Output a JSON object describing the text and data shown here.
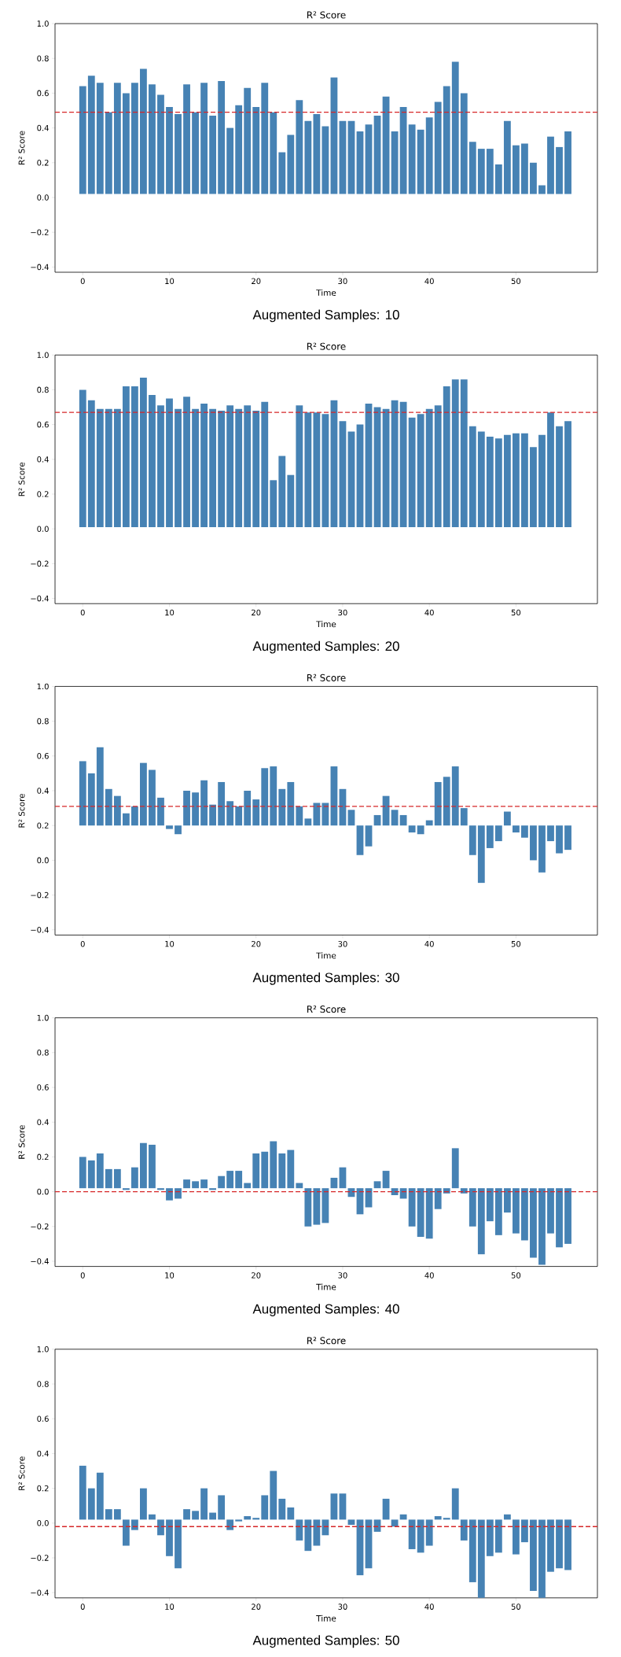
{
  "chart_data": [
    {
      "type": "bar",
      "title": "R² Score",
      "xlabel": "Time",
      "ylabel": "R² Score",
      "annotations": [
        "Augmented Samples:  10"
      ],
      "color": "#4682b4",
      "x": [
        0,
        1,
        2,
        3,
        4,
        5,
        6,
        7,
        8,
        9,
        10,
        11,
        12,
        13,
        14,
        15,
        16,
        17,
        18,
        19,
        20,
        21,
        22,
        23,
        24,
        25,
        26,
        27,
        28,
        29,
        30,
        31,
        32,
        33,
        34,
        35,
        36,
        37,
        38,
        39,
        40,
        41,
        42,
        43,
        44,
        45,
        46,
        47,
        48,
        49,
        50,
        51,
        52,
        53,
        54,
        55,
        56
      ],
      "base": [
        0.02,
        0.02,
        0.02,
        0.02,
        0.02,
        0.02,
        0.02,
        0.02,
        0.02,
        0.02,
        0.02,
        0.02,
        0.02,
        0.02,
        0.02,
        0.02,
        0.02,
        0.02,
        0.02,
        0.02,
        0.02,
        0.02,
        0.02,
        0.02,
        0.02,
        0.02,
        0.02,
        0.02,
        0.02,
        0.02,
        0.02,
        0.02,
        0.02,
        0.02,
        0.02,
        0.02,
        0.02,
        0.02,
        0.02,
        0.02,
        0.02,
        0.02,
        0.02,
        0.02,
        0.02,
        0.02,
        0.02,
        0.02,
        0.02,
        0.02,
        0.02,
        0.02,
        0.02,
        0.02,
        0.02,
        0.02,
        0.02
      ],
      "values": [
        0.62,
        0.68,
        0.64,
        0.47,
        0.64,
        0.58,
        0.64,
        0.72,
        0.63,
        0.57,
        0.5,
        0.46,
        0.63,
        0.47,
        0.64,
        0.45,
        0.65,
        0.38,
        0.51,
        0.61,
        0.5,
        0.64,
        0.47,
        0.24,
        0.34,
        0.54,
        0.42,
        0.46,
        0.39,
        0.67,
        0.42,
        0.42,
        0.36,
        0.4,
        0.45,
        0.56,
        0.36,
        0.5,
        0.4,
        0.37,
        0.44,
        0.53,
        0.62,
        0.76,
        0.58,
        0.3,
        0.26,
        0.26,
        0.17,
        0.42,
        0.28,
        0.29,
        0.18,
        0.05,
        0.33,
        0.27,
        0.36
      ],
      "xlim": [
        -3.2,
        59.4
      ],
      "ylim": [
        -0.43,
        1.0
      ],
      "xticks": [
        0,
        10,
        20,
        30,
        40,
        50
      ],
      "yticks": [
        {
          "value": -0.4,
          "label": "−0.4"
        },
        {
          "value": -0.2,
          "label": "−0.2"
        },
        {
          "value": 0.0,
          "label": "0.0"
        },
        {
          "value": 0.2,
          "label": "0.2"
        },
        {
          "value": 0.4,
          "label": "0.4"
        },
        {
          "value": 0.6,
          "label": "0.6"
        },
        {
          "value": 0.8,
          "label": "0.8"
        },
        {
          "value": 1.0,
          "label": "1.0"
        }
      ],
      "ref_lines": [
        {
          "axis": "y",
          "value": 0.49,
          "color": "#d62728",
          "line_style": "dashed"
        }
      ]
    },
    {
      "type": "bar",
      "title": "R² Score",
      "xlabel": "Time",
      "ylabel": "R² Score",
      "annotations": [
        "Augmented Samples:  20"
      ],
      "color": "#4682b4",
      "x": [
        0,
        1,
        2,
        3,
        4,
        5,
        6,
        7,
        8,
        9,
        10,
        11,
        12,
        13,
        14,
        15,
        16,
        17,
        18,
        19,
        20,
        21,
        22,
        23,
        24,
        25,
        26,
        27,
        28,
        29,
        30,
        31,
        32,
        33,
        34,
        35,
        36,
        37,
        38,
        39,
        40,
        41,
        42,
        43,
        44,
        45,
        46,
        47,
        48,
        49,
        50,
        51,
        52,
        53,
        54,
        55,
        56
      ],
      "base": [
        0.01,
        0.01,
        0.01,
        0.01,
        0.01,
        0.01,
        0.01,
        0.01,
        0.01,
        0.01,
        0.01,
        0.01,
        0.01,
        0.01,
        0.01,
        0.01,
        0.01,
        0.01,
        0.01,
        0.01,
        0.01,
        0.01,
        0.01,
        0.01,
        0.01,
        0.01,
        0.01,
        0.01,
        0.01,
        0.01,
        0.01,
        0.01,
        0.01,
        0.01,
        0.01,
        0.01,
        0.01,
        0.01,
        0.01,
        0.01,
        0.01,
        0.01,
        0.01,
        0.01,
        0.01,
        0.01,
        0.01,
        0.01,
        0.01,
        0.01,
        0.01,
        0.01,
        0.01,
        0.01,
        0.01,
        0.01,
        0.01
      ],
      "values": [
        0.79,
        0.73,
        0.68,
        0.68,
        0.68,
        0.81,
        0.81,
        0.86,
        0.76,
        0.7,
        0.74,
        0.68,
        0.75,
        0.68,
        0.71,
        0.68,
        0.67,
        0.7,
        0.68,
        0.7,
        0.67,
        0.72,
        0.27,
        0.41,
        0.3,
        0.7,
        0.66,
        0.66,
        0.65,
        0.73,
        0.61,
        0.55,
        0.59,
        0.71,
        0.69,
        0.68,
        0.73,
        0.72,
        0.63,
        0.65,
        0.68,
        0.7,
        0.81,
        0.85,
        0.85,
        0.58,
        0.55,
        0.52,
        0.51,
        0.53,
        0.54,
        0.54,
        0.46,
        0.53,
        0.66,
        0.58,
        0.61
      ],
      "xlim": [
        -3.2,
        59.4
      ],
      "ylim": [
        -0.43,
        1.0
      ],
      "xticks": [
        0,
        10,
        20,
        30,
        40,
        50
      ],
      "yticks": [
        {
          "value": -0.4,
          "label": "−0.4"
        },
        {
          "value": -0.2,
          "label": "−0.2"
        },
        {
          "value": 0.0,
          "label": "0.0"
        },
        {
          "value": 0.2,
          "label": "0.2"
        },
        {
          "value": 0.4,
          "label": "0.4"
        },
        {
          "value": 0.6,
          "label": "0.6"
        },
        {
          "value": 0.8,
          "label": "0.8"
        },
        {
          "value": 1.0,
          "label": "1.0"
        }
      ],
      "ref_lines": [
        {
          "axis": "y",
          "value": 0.67,
          "color": "#d62728",
          "line_style": "dashed"
        }
      ]
    },
    {
      "type": "bar",
      "title": "R² Score",
      "xlabel": "Time",
      "ylabel": "R² Score",
      "annotations": [
        "Augmented Samples:  30"
      ],
      "color": "#4682b4",
      "x": [
        0,
        1,
        2,
        3,
        4,
        5,
        6,
        7,
        8,
        9,
        10,
        11,
        12,
        13,
        14,
        15,
        16,
        17,
        18,
        19,
        20,
        21,
        22,
        23,
        24,
        25,
        26,
        27,
        28,
        29,
        30,
        31,
        32,
        33,
        34,
        35,
        36,
        37,
        38,
        39,
        40,
        41,
        42,
        43,
        44,
        45,
        46,
        47,
        48,
        49,
        50,
        51,
        52,
        53,
        54,
        55,
        56
      ],
      "base": [
        0.2,
        0.2,
        0.2,
        0.2,
        0.2,
        0.2,
        0.2,
        0.2,
        0.2,
        0.2,
        0.2,
        0.2,
        0.2,
        0.2,
        0.2,
        0.2,
        0.2,
        0.2,
        0.2,
        0.2,
        0.2,
        0.2,
        0.2,
        0.2,
        0.2,
        0.2,
        0.2,
        0.2,
        0.2,
        0.2,
        0.2,
        0.2,
        0.2,
        0.2,
        0.2,
        0.2,
        0.2,
        0.2,
        0.2,
        0.2,
        0.2,
        0.2,
        0.2,
        0.2,
        0.2,
        0.2,
        0.2,
        0.2,
        0.2,
        0.2,
        0.2,
        0.2,
        0.2,
        0.2,
        0.2,
        0.2,
        0.2
      ],
      "values": [
        0.37,
        0.3,
        0.45,
        0.21,
        0.17,
        0.07,
        0.11,
        0.36,
        0.32,
        0.16,
        -0.02,
        -0.05,
        0.2,
        0.19,
        0.26,
        0.12,
        0.25,
        0.14,
        0.11,
        0.2,
        0.15,
        0.33,
        0.34,
        0.21,
        0.25,
        0.11,
        0.04,
        0.13,
        0.13,
        0.34,
        0.21,
        0.09,
        -0.17,
        -0.12,
        0.06,
        0.17,
        0.09,
        0.06,
        -0.04,
        -0.05,
        0.03,
        0.25,
        0.28,
        0.34,
        0.1,
        -0.17,
        -0.33,
        -0.13,
        -0.09,
        0.08,
        -0.04,
        -0.07,
        -0.2,
        -0.27,
        -0.09,
        -0.16,
        -0.14
      ],
      "xlim": [
        -3.2,
        59.4
      ],
      "ylim": [
        -0.43,
        1.0
      ],
      "xticks": [
        0,
        10,
        20,
        30,
        40,
        50
      ],
      "yticks": [
        {
          "value": -0.4,
          "label": "−0.4"
        },
        {
          "value": -0.2,
          "label": "−0.2"
        },
        {
          "value": 0.0,
          "label": "0.0"
        },
        {
          "value": 0.2,
          "label": "0.2"
        },
        {
          "value": 0.4,
          "label": "0.4"
        },
        {
          "value": 0.6,
          "label": "0.6"
        },
        {
          "value": 0.8,
          "label": "0.8"
        },
        {
          "value": 1.0,
          "label": "1.0"
        }
      ],
      "ref_lines": [
        {
          "axis": "y",
          "value": 0.31,
          "color": "#d62728",
          "line_style": "dashed"
        }
      ]
    },
    {
      "type": "bar",
      "title": "R² Score",
      "xlabel": "Time",
      "ylabel": "R² Score",
      "annotations": [
        "Augmented Samples:  40"
      ],
      "color": "#4682b4",
      "x": [
        0,
        1,
        2,
        3,
        4,
        5,
        6,
        7,
        8,
        9,
        10,
        11,
        12,
        13,
        14,
        15,
        16,
        17,
        18,
        19,
        20,
        21,
        22,
        23,
        24,
        25,
        26,
        27,
        28,
        29,
        30,
        31,
        32,
        33,
        34,
        35,
        36,
        37,
        38,
        39,
        40,
        41,
        42,
        43,
        44,
        45,
        46,
        47,
        48,
        49,
        50,
        51,
        52,
        53,
        54,
        55,
        56
      ],
      "base": [
        0.02,
        0.02,
        0.02,
        0.02,
        0.02,
        0.02,
        0.02,
        0.02,
        0.02,
        0.02,
        0.02,
        0.02,
        0.02,
        0.02,
        0.02,
        0.02,
        0.02,
        0.02,
        0.02,
        0.02,
        0.02,
        0.02,
        0.02,
        0.02,
        0.02,
        0.02,
        0.02,
        0.02,
        0.02,
        0.02,
        0.02,
        0.02,
        0.02,
        0.02,
        0.02,
        0.02,
        0.02,
        0.02,
        0.02,
        0.02,
        0.02,
        0.02,
        0.02,
        0.02,
        0.02,
        0.02,
        0.02,
        0.02,
        0.02,
        0.02,
        0.02,
        0.02,
        0.02,
        0.02,
        0.02,
        0.02,
        0.02
      ],
      "values": [
        0.18,
        0.16,
        0.2,
        0.11,
        0.11,
        -0.01,
        0.12,
        0.26,
        0.25,
        -0.01,
        -0.07,
        -0.06,
        0.05,
        0.04,
        0.05,
        -0.01,
        0.07,
        0.1,
        0.1,
        0.03,
        0.2,
        0.21,
        0.27,
        0.2,
        0.22,
        0.03,
        -0.22,
        -0.21,
        -0.2,
        0.06,
        0.12,
        -0.05,
        -0.15,
        -0.11,
        0.04,
        0.1,
        -0.04,
        -0.06,
        -0.22,
        -0.28,
        -0.29,
        -0.12,
        -0.03,
        0.23,
        -0.03,
        -0.22,
        -0.38,
        -0.19,
        -0.27,
        -0.14,
        -0.26,
        -0.3,
        -0.4,
        -0.44,
        -0.26,
        -0.34,
        -0.32
      ],
      "xlim": [
        -3.2,
        59.4
      ],
      "ylim": [
        -0.43,
        1.0
      ],
      "xticks": [
        0,
        10,
        20,
        30,
        40,
        50
      ],
      "yticks": [
        {
          "value": -0.4,
          "label": "−0.4"
        },
        {
          "value": -0.2,
          "label": "−0.2"
        },
        {
          "value": 0.0,
          "label": "0.0"
        },
        {
          "value": 0.2,
          "label": "0.2"
        },
        {
          "value": 0.4,
          "label": "0.4"
        },
        {
          "value": 0.6,
          "label": "0.6"
        },
        {
          "value": 0.8,
          "label": "0.8"
        },
        {
          "value": 1.0,
          "label": "1.0"
        }
      ],
      "ref_lines": [
        {
          "axis": "y",
          "value": 0.0,
          "color": "#d62728",
          "line_style": "dashed"
        }
      ]
    },
    {
      "type": "bar",
      "title": "R² Score",
      "xlabel": "Time",
      "ylabel": "R² Score",
      "annotations": [
        "Augmented Samples:  50"
      ],
      "color": "#4682b4",
      "x": [
        0,
        1,
        2,
        3,
        4,
        5,
        6,
        7,
        8,
        9,
        10,
        11,
        12,
        13,
        14,
        15,
        16,
        17,
        18,
        19,
        20,
        21,
        22,
        23,
        24,
        25,
        26,
        27,
        28,
        29,
        30,
        31,
        32,
        33,
        34,
        35,
        36,
        37,
        38,
        39,
        40,
        41,
        42,
        43,
        44,
        45,
        46,
        47,
        48,
        49,
        50,
        51,
        52,
        53,
        54,
        55,
        56
      ],
      "base": [
        0.02,
        0.02,
        0.02,
        0.02,
        0.02,
        0.02,
        0.02,
        0.02,
        0.02,
        0.02,
        0.02,
        0.02,
        0.02,
        0.02,
        0.02,
        0.02,
        0.02,
        0.02,
        0.02,
        0.02,
        0.02,
        0.02,
        0.02,
        0.02,
        0.02,
        0.02,
        0.02,
        0.02,
        0.02,
        0.02,
        0.02,
        0.02,
        0.02,
        0.02,
        0.02,
        0.02,
        0.02,
        0.02,
        0.02,
        0.02,
        0.02,
        0.02,
        0.02,
        0.02,
        0.02,
        0.02,
        0.02,
        0.02,
        0.02,
        0.02,
        0.02,
        0.02,
        0.02,
        0.02,
        0.02,
        0.02,
        0.02
      ],
      "values": [
        0.31,
        0.18,
        0.27,
        0.06,
        0.06,
        -0.15,
        -0.06,
        0.18,
        0.03,
        -0.09,
        -0.21,
        -0.28,
        0.06,
        0.05,
        0.18,
        0.04,
        0.14,
        -0.06,
        -0.01,
        0.02,
        0.01,
        0.14,
        0.28,
        0.12,
        0.07,
        -0.12,
        -0.18,
        -0.15,
        -0.09,
        0.15,
        0.15,
        -0.03,
        -0.32,
        -0.28,
        -0.07,
        0.12,
        -0.04,
        0.03,
        -0.17,
        -0.19,
        -0.15,
        0.02,
        0.01,
        0.18,
        -0.12,
        -0.36,
        -0.45,
        -0.21,
        -0.19,
        0.03,
        -0.2,
        -0.13,
        -0.41,
        -0.45,
        -0.3,
        -0.28,
        -0.29
      ],
      "xlim": [
        -3.2,
        59.4
      ],
      "ylim": [
        -0.43,
        1.0
      ],
      "xticks": [
        0,
        10,
        20,
        30,
        40,
        50
      ],
      "yticks": [
        {
          "value": -0.4,
          "label": "−0.4"
        },
        {
          "value": -0.2,
          "label": "−0.2"
        },
        {
          "value": 0.0,
          "label": "0.0"
        },
        {
          "value": 0.2,
          "label": "0.2"
        },
        {
          "value": 0.4,
          "label": "0.4"
        },
        {
          "value": 0.6,
          "label": "0.6"
        },
        {
          "value": 0.8,
          "label": "0.8"
        },
        {
          "value": 1.0,
          "label": "1.0"
        }
      ],
      "ref_lines": [
        {
          "axis": "y",
          "value": -0.02,
          "color": "#d62728",
          "line_style": "dashed"
        }
      ]
    }
  ]
}
